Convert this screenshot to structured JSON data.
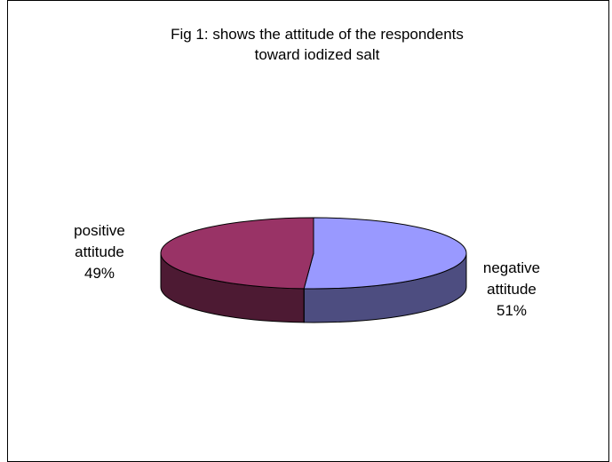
{
  "chart_data": {
    "type": "pie",
    "title_lines": [
      "Fig 1: shows the attitude of the respondents",
      "toward iodized salt"
    ],
    "slices": [
      {
        "label_lines": [
          "positive",
          "attitude"
        ],
        "value": 49,
        "value_label": "49%",
        "color": "#993366",
        "side_color": "#4d1a33"
      },
      {
        "label_lines": [
          "negative",
          "attitude"
        ],
        "value": 51,
        "value_label": "51%",
        "color": "#9999ff",
        "side_color": "#4d4d80"
      }
    ],
    "view": "3d",
    "legend": "none"
  }
}
